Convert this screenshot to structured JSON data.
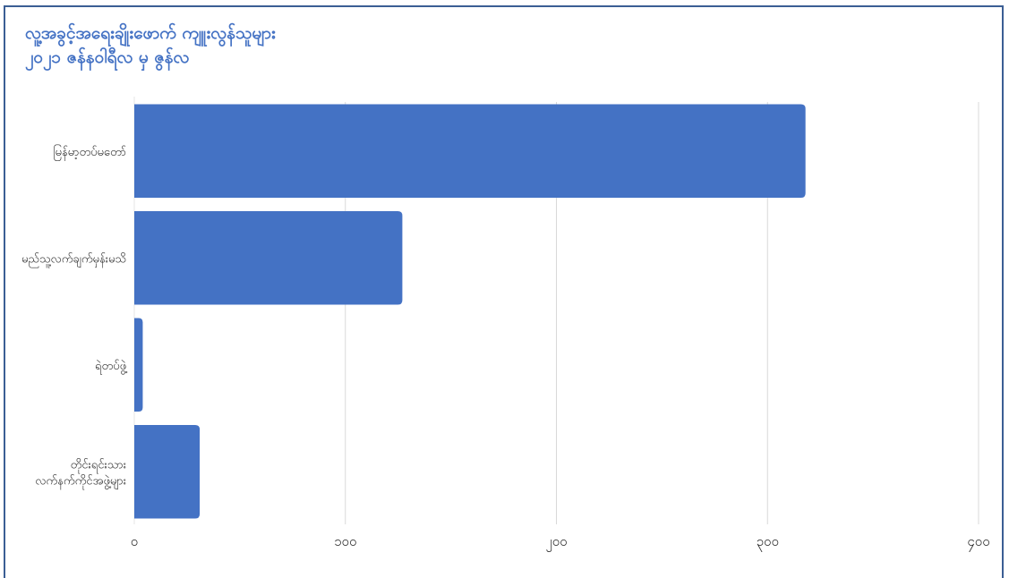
{
  "chart_data": {
    "type": "bar",
    "orientation": "horizontal",
    "title": "လူ့အခွင့်အရေးချိုးဖောက် ကျူးလွန်သူများ",
    "subtitle": "၂၀၂၁ ဇန်နဝါရီလ မှ ဇွန်လ",
    "categories": [
      [
        "မြန်မာ့တပ်မတော်"
      ],
      [
        "မည်သူ့လက်ချက်မှန်းမသိ"
      ],
      [
        "ရဲတပ်ဖွဲ့"
      ],
      [
        "တိုင်းရင်းသား",
        "လက်နက်ကိုင်အဖွဲ့များ"
      ]
    ],
    "values": [
      318,
      127,
      4,
      31
    ],
    "xlim": [
      0,
      400
    ],
    "xticks": [
      0,
      100,
      200,
      300,
      400
    ],
    "xtick_labels": [
      "၀",
      "၁၀၀",
      "၂၀၀",
      "၃၀၀",
      "၄၀၀"
    ],
    "bar_color": "#4472c4",
    "grid_color": "#d9d9d9",
    "grid": true,
    "legend": "none"
  }
}
